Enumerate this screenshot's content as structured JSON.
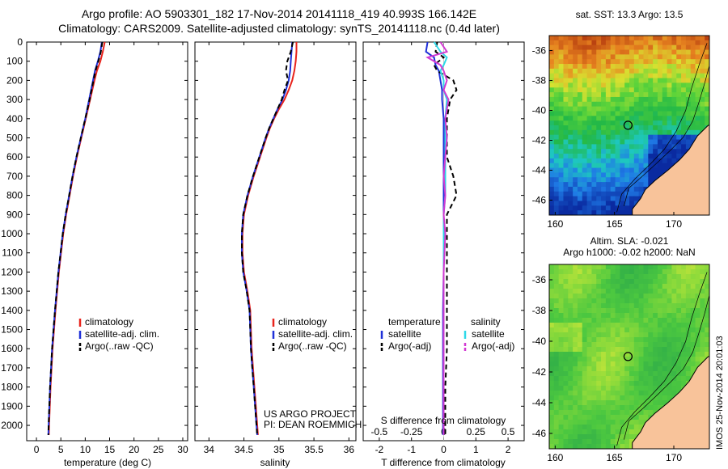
{
  "header": {
    "line1": "Argo profile: AO 5903301_182 17-Nov-2014 20141118_419 40.993S 166.142E",
    "line2": "Climatology: CARS2009. Satellite-adjusted climatology: synTS_20141118.nc (0.4d later)"
  },
  "colors": {
    "climatology": "#e8231c",
    "satellite": "#1f30d8",
    "argo": "#000000",
    "satellite_sal": "#2ed8e8",
    "argo_sal": "#d23ad2",
    "land": "#f8c39a"
  },
  "chart_data": [
    {
      "type": "line",
      "name": "temperature-profile",
      "xlabel": "temperature (deg C)",
      "xlim": [
        -2,
        31
      ],
      "ylim": [
        2080,
        0
      ],
      "xticks": [
        "0",
        "5",
        "10",
        "15",
        "20",
        "25",
        "30"
      ],
      "yticks": [
        "0",
        "100",
        "200",
        "300",
        "400",
        "500",
        "600",
        "700",
        "800",
        "900",
        "1000",
        "1100",
        "1200",
        "1300",
        "1400",
        "1500",
        "1600",
        "1700",
        "1800",
        "1900",
        "2000"
      ],
      "y": [
        0,
        50,
        100,
        150,
        200,
        300,
        400,
        500,
        600,
        700,
        800,
        900,
        1000,
        1200,
        1400,
        1600,
        1800,
        2000,
        2050
      ],
      "series": [
        {
          "name": "climatology",
          "color": "#e8231c",
          "values": [
            14.0,
            13.6,
            13.1,
            12.4,
            11.9,
            11.0,
            10.1,
            9.2,
            8.3,
            7.5,
            6.8,
            6.1,
            5.5,
            4.6,
            3.9,
            3.3,
            2.9,
            2.6,
            2.55
          ]
        },
        {
          "name": "satellite-adj. clim.",
          "color": "#1f30d8",
          "values": [
            13.4,
            13.1,
            12.6,
            12.0,
            11.6,
            10.8,
            10.0,
            9.1,
            8.2,
            7.4,
            6.7,
            6.0,
            5.4,
            4.5,
            3.8,
            3.2,
            2.8,
            2.5,
            2.45
          ]
        },
        {
          "name": "Argo(..raw -QC)",
          "color": "#000000",
          "dash": true,
          "values": [
            13.5,
            13.2,
            12.7,
            12.1,
            11.7,
            10.9,
            10.0,
            9.1,
            8.2,
            7.4,
            6.7,
            6.0,
            5.4,
            4.5,
            3.8,
            3.2,
            2.8,
            2.5,
            2.45
          ]
        }
      ],
      "legend": [
        "climatology",
        "satellite-adj. clim.",
        "Argo(..raw -QC)"
      ]
    },
    {
      "type": "line",
      "name": "salinity-profile",
      "xlabel": "salinity",
      "xlim": [
        33.8,
        36.1
      ],
      "ylim": [
        2080,
        0
      ],
      "xticks": [
        "34",
        "34.5",
        "35",
        "35.5",
        "36"
      ],
      "y": [
        0,
        50,
        100,
        150,
        200,
        250,
        300,
        350,
        400,
        450,
        500,
        600,
        700,
        800,
        900,
        1000,
        1100,
        1200,
        1300,
        1400,
        1500,
        1600,
        1700,
        1800,
        1900,
        2000,
        2050
      ],
      "series": [
        {
          "name": "climatology",
          "color": "#e8231c",
          "values": [
            35.25,
            35.25,
            35.24,
            35.22,
            35.19,
            35.14,
            35.08,
            35.0,
            34.93,
            34.87,
            34.82,
            34.73,
            34.64,
            34.56,
            34.5,
            34.48,
            34.48,
            34.5,
            34.55,
            34.59,
            34.6,
            34.61,
            34.63,
            34.65,
            34.67,
            34.69,
            34.7
          ]
        },
        {
          "name": "satellite-adj. clim.",
          "color": "#1f30d8",
          "values": [
            35.19,
            35.18,
            35.17,
            35.16,
            35.14,
            35.1,
            35.05,
            34.98,
            34.92,
            34.86,
            34.81,
            34.72,
            34.63,
            34.55,
            34.49,
            34.47,
            34.47,
            34.49,
            34.54,
            34.58,
            34.59,
            34.6,
            34.62,
            34.64,
            34.66,
            34.68,
            34.69
          ]
        },
        {
          "name": "Argo(..raw -QC)",
          "color": "#000000",
          "dash": true,
          "values": [
            35.2,
            35.17,
            35.12,
            35.1,
            35.13,
            35.08,
            35.04,
            34.98,
            34.92,
            34.86,
            34.81,
            34.72,
            34.63,
            34.55,
            34.49,
            34.47,
            34.47,
            34.49,
            34.54,
            34.58,
            34.59,
            34.6,
            34.62,
            34.64,
            34.66,
            34.68,
            34.69
          ]
        }
      ],
      "legend": [
        "climatology",
        "satellite-adj. clim.",
        "Argo(..raw -QC)"
      ],
      "annotation": [
        "US ARGO PROJECT",
        "PI: DEAN ROEMMICH"
      ]
    },
    {
      "type": "line",
      "name": "difference-profile",
      "xlabel": "T difference from climatology",
      "xlabel_top": "S difference from climatology",
      "xlim": [
        -2.5,
        2.5
      ],
      "ylim": [
        2080,
        0
      ],
      "xticks": [
        "-2",
        "-1",
        "0",
        "1",
        "2"
      ],
      "xticks_top": [
        {
          "label": "-0.5",
          "at": -2
        },
        {
          "label": "-0.25",
          "at": -1
        },
        {
          "label": "0",
          "at": 0
        },
        {
          "label": "0.25",
          "at": 1
        },
        {
          "label": "0.5",
          "at": 2
        }
      ],
      "y": [
        0,
        50,
        80,
        120,
        150,
        200,
        250,
        300,
        400,
        500,
        600,
        700,
        800,
        900,
        1000,
        1200,
        1400,
        1600,
        1800,
        2000,
        2050
      ],
      "series": [
        {
          "name": "temperature satellite",
          "color": "#1f30d8",
          "values": [
            -0.5,
            -0.55,
            -0.3,
            -0.25,
            -0.15,
            -0.1,
            -0.05,
            -0.05,
            0,
            0,
            0,
            0,
            0,
            0,
            0,
            0,
            -0.02,
            -0.02,
            -0.02,
            -0.02,
            -0.02
          ]
        },
        {
          "name": "temperature Argo(-adj)",
          "color": "#000000",
          "dash": true,
          "values": [
            -0.2,
            -0.25,
            0.0,
            -0.3,
            -0.2,
            0.3,
            0.4,
            0.2,
            0.1,
            0.1,
            0.1,
            0.3,
            0.4,
            0.1,
            0.1,
            0.1,
            0.1,
            0.1,
            0.05,
            0.05,
            0.05
          ]
        },
        {
          "name": "salinity satellite",
          "color": "#2ed8e8",
          "values": [
            -0.3,
            -0.1,
            0.1,
            0.0,
            -0.1,
            0.0,
            0.0,
            0.1,
            0.05,
            0.05,
            0.05,
            0.05,
            0.05,
            0.0,
            0.0,
            0.0,
            0.0,
            0.0,
            0.0,
            0.0,
            0.0
          ]
        },
        {
          "name": "salinity Argo(-adj)",
          "color": "#d23ad2",
          "values": [
            -0.1,
            0.1,
            -0.5,
            -0.1,
            0.0,
            0.1,
            0.0,
            0.15,
            0.05,
            0.1,
            0.05,
            0.0,
            0.05,
            0.0,
            0.05,
            0.0,
            0.0,
            0.0,
            0.0,
            0.0,
            0.0
          ]
        }
      ],
      "legend_headers": [
        "temperature",
        "salinity"
      ],
      "legend": [
        {
          "label": "satellite",
          "color": "#1f30d8",
          "dash": false
        },
        {
          "label": "Argo(-adj)",
          "color": "#000000",
          "dash": true
        },
        {
          "label": "satellite",
          "color": "#2ed8e8",
          "dash": false
        },
        {
          "label": "Argo(-adj)",
          "color": "#d23ad2",
          "dash": true
        }
      ]
    },
    {
      "type": "heatmap",
      "name": "sst-map",
      "title": "sat. SST: 13.3 Argo: 13.5",
      "xlim": [
        159.5,
        173
      ],
      "ylim": [
        -47,
        -35
      ],
      "xticks": [
        "160",
        "165",
        "170"
      ],
      "yticks": [
        "-36",
        "-38",
        "-40",
        "-42",
        "-44",
        "-46"
      ],
      "marker": {
        "lon": 166.142,
        "lat": -40.993
      }
    },
    {
      "type": "heatmap",
      "name": "sla-map",
      "title": "Altim. SLA: -0.021",
      "subtitle": "Argo h1000: -0.02 h2000: NaN",
      "xlim": [
        159.5,
        173
      ],
      "ylim": [
        -47,
        -35
      ],
      "xticks": [
        "160",
        "165",
        "170"
      ],
      "yticks": [
        "-36",
        "-38",
        "-40",
        "-42",
        "-44",
        "-46"
      ],
      "marker": {
        "lon": 166.142,
        "lat": -40.993
      }
    }
  ],
  "footer": {
    "imos_stamp": "IMOS 25-Nov-2014 20:01:03"
  }
}
